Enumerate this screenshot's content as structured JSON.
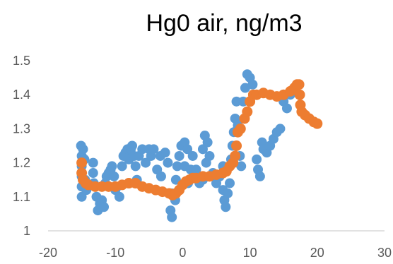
{
  "chart_data": {
    "type": "scatter",
    "title": "Hg0 air, ng/m3",
    "xlabel": "",
    "ylabel": "",
    "xlim": [
      -20,
      30
    ],
    "ylim": [
      1,
      1.5
    ],
    "x_ticks": [
      "-20",
      "-10",
      "0",
      "10",
      "20",
      "30"
    ],
    "y_ticks": [
      "1",
      "1.1",
      "1.2",
      "1.3",
      "1.4",
      "1.5"
    ],
    "grid": false,
    "legend": "none",
    "series": [
      {
        "color": "#5B9BD5",
        "points": [
          [
            -15.1,
            1.25
          ],
          [
            -15.0,
            1.22
          ],
          [
            -15.0,
            1.19
          ],
          [
            -15.0,
            1.16
          ],
          [
            -15.0,
            1.13
          ],
          [
            -15.0,
            1.1
          ],
          [
            -14.8,
            1.24
          ],
          [
            -14.6,
            1.21
          ],
          [
            -14.5,
            1.15
          ],
          [
            -14.3,
            1.12
          ],
          [
            -13.3,
            1.2
          ],
          [
            -13.3,
            1.17
          ],
          [
            -13.2,
            1.14
          ],
          [
            -12.8,
            1.1
          ],
          [
            -12.6,
            1.06
          ],
          [
            -12.3,
            1.08
          ],
          [
            -12.0,
            1.09
          ],
          [
            -11.7,
            1.07
          ],
          [
            -11.5,
            1.14
          ],
          [
            -11.3,
            1.16
          ],
          [
            -11.0,
            1.17
          ],
          [
            -10.7,
            1.18
          ],
          [
            -10.5,
            1.19
          ],
          [
            -10.2,
            1.16
          ],
          [
            -10.0,
            1.12
          ],
          [
            -9.7,
            1.13
          ],
          [
            -9.4,
            1.1
          ],
          [
            -9.0,
            1.19
          ],
          [
            -8.8,
            1.22
          ],
          [
            -8.5,
            1.23
          ],
          [
            -8.2,
            1.24
          ],
          [
            -8.0,
            1.21
          ],
          [
            -7.7,
            1.24
          ],
          [
            -7.5,
            1.25
          ],
          [
            -7.2,
            1.22
          ],
          [
            -7.0,
            1.19
          ],
          [
            -6.8,
            1.15
          ],
          [
            -6.5,
            1.22
          ],
          [
            -6.0,
            1.24
          ],
          [
            -5.5,
            1.2
          ],
          [
            -5.0,
            1.24
          ],
          [
            -4.7,
            1.22
          ],
          [
            -4.3,
            1.24
          ],
          [
            -3.8,
            1.18
          ],
          [
            -3.3,
            1.22
          ],
          [
            -3.2,
            1.16
          ],
          [
            -2.6,
            1.23
          ],
          [
            -2.2,
            1.2
          ],
          [
            -1.6,
            1.11
          ],
          [
            -1.8,
            1.06
          ],
          [
            -1.6,
            1.04
          ],
          [
            -1.1,
            1.09
          ],
          [
            -1.0,
            1.15
          ],
          [
            -0.8,
            1.19
          ],
          [
            -0.5,
            1.22
          ],
          [
            -0.2,
            1.25
          ],
          [
            0.3,
            1.26
          ],
          [
            0.7,
            1.24
          ],
          [
            0.3,
            1.19
          ],
          [
            0.8,
            1.14
          ],
          [
            1.2,
            1.18
          ],
          [
            1.5,
            1.22
          ],
          [
            2.0,
            1.18
          ],
          [
            2.5,
            1.14
          ],
          [
            3.0,
            1.15
          ],
          [
            3.5,
            1.2
          ],
          [
            3.0,
            1.24
          ],
          [
            3.3,
            1.28
          ],
          [
            3.7,
            1.26
          ],
          [
            4.0,
            1.22
          ],
          [
            4.5,
            1.17
          ],
          [
            5.0,
            1.14
          ],
          [
            5.5,
            1.16
          ],
          [
            6.0,
            1.19
          ],
          [
            6.0,
            1.12
          ],
          [
            6.2,
            1.09
          ],
          [
            6.4,
            1.07
          ],
          [
            6.7,
            1.11
          ],
          [
            7.0,
            1.14
          ],
          [
            7.2,
            1.21
          ],
          [
            7.4,
            1.25
          ],
          [
            7.6,
            1.29
          ],
          [
            7.8,
            1.33
          ],
          [
            8.0,
            1.38
          ],
          [
            8.2,
            1.31
          ],
          [
            8.5,
            1.22
          ],
          [
            8.7,
            1.19
          ],
          [
            9.0,
            1.38
          ],
          [
            9.3,
            1.42
          ],
          [
            9.6,
            1.46
          ],
          [
            10.0,
            1.45
          ],
          [
            10.4,
            1.43
          ],
          [
            11.0,
            1.21
          ],
          [
            11.2,
            1.18
          ],
          [
            11.5,
            1.16
          ],
          [
            11.8,
            1.26
          ],
          [
            12.0,
            1.24
          ],
          [
            12.5,
            1.23
          ],
          [
            13.0,
            1.25
          ],
          [
            13.5,
            1.27
          ],
          [
            14.0,
            1.29
          ],
          [
            14.5,
            1.3
          ],
          [
            15.0,
            1.38
          ],
          [
            15.5,
            1.36
          ],
          [
            16.0,
            1.4
          ]
        ]
      },
      {
        "color": "#ED7D31",
        "points": [
          [
            -15.0,
            1.2
          ],
          [
            -15.0,
            1.17
          ],
          [
            -14.8,
            1.15
          ],
          [
            -14.4,
            1.14
          ],
          [
            -14.0,
            1.135
          ],
          [
            -13.0,
            1.13
          ],
          [
            -12.0,
            1.13
          ],
          [
            -11.0,
            1.13
          ],
          [
            -10.0,
            1.13
          ],
          [
            -9.0,
            1.135
          ],
          [
            -8.0,
            1.14
          ],
          [
            -7.0,
            1.14
          ],
          [
            -6.0,
            1.13
          ],
          [
            -5.0,
            1.125
          ],
          [
            -4.0,
            1.12
          ],
          [
            -3.0,
            1.115
          ],
          [
            -2.0,
            1.11
          ],
          [
            -1.5,
            1.105
          ],
          [
            -1.0,
            1.11
          ],
          [
            -0.5,
            1.12
          ],
          [
            0.0,
            1.135
          ],
          [
            0.5,
            1.145
          ],
          [
            1.0,
            1.15
          ],
          [
            1.5,
            1.155
          ],
          [
            2.0,
            1.155
          ],
          [
            3.0,
            1.16
          ],
          [
            4.0,
            1.16
          ],
          [
            5.0,
            1.165
          ],
          [
            6.0,
            1.17
          ],
          [
            6.5,
            1.175
          ],
          [
            7.0,
            1.19
          ],
          [
            7.5,
            1.2
          ],
          [
            7.8,
            1.22
          ],
          [
            8.0,
            1.25
          ],
          [
            8.2,
            1.29
          ],
          [
            8.6,
            1.3
          ],
          [
            9.2,
            1.33
          ],
          [
            9.6,
            1.35
          ],
          [
            10.0,
            1.38
          ],
          [
            10.5,
            1.4
          ],
          [
            11.0,
            1.4
          ],
          [
            12.0,
            1.405
          ],
          [
            13.0,
            1.4
          ],
          [
            14.0,
            1.395
          ],
          [
            15.0,
            1.4
          ],
          [
            16.0,
            1.41
          ],
          [
            16.6,
            1.42
          ],
          [
            17.0,
            1.43
          ],
          [
            17.3,
            1.43
          ],
          [
            17.4,
            1.4
          ],
          [
            17.5,
            1.37
          ],
          [
            17.7,
            1.35
          ],
          [
            18.2,
            1.34
          ],
          [
            18.8,
            1.33
          ],
          [
            19.5,
            1.32
          ],
          [
            20.0,
            1.315
          ]
        ]
      }
    ]
  }
}
